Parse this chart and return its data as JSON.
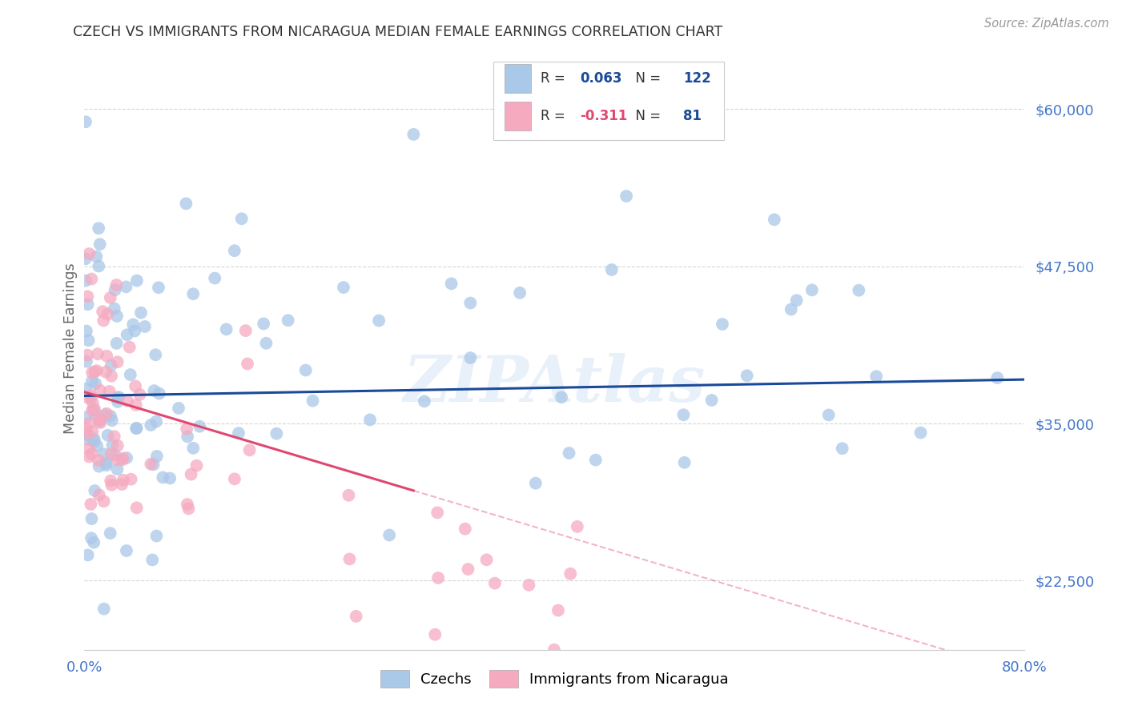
{
  "title": "CZECH VS IMMIGRANTS FROM NICARAGUA MEDIAN FEMALE EARNINGS CORRELATION CHART",
  "source": "Source: ZipAtlas.com",
  "ylabel": "Median Female Earnings",
  "xlim": [
    0.0,
    0.8
  ],
  "ylim": [
    17000,
    65000
  ],
  "yticks": [
    22500,
    35000,
    47500,
    60000
  ],
  "ytick_labels": [
    "$22,500",
    "$35,000",
    "$47,500",
    "$60,000"
  ],
  "xtick_labels": [
    "0.0%",
    "",
    "",
    "",
    "",
    "",
    "",
    "",
    "80.0%"
  ],
  "legend_labels": [
    "Czechs",
    "Immigrants from Nicaragua"
  ],
  "czech_color": "#aac8e8",
  "nicaragua_color": "#f5aac0",
  "czech_line_color": "#1a4a9a",
  "nicaragua_line_color": "#e04870",
  "watermark": "ZIPAtlas",
  "R_czech": 0.063,
  "N_czech": 122,
  "R_nicaragua": -0.311,
  "N_nicaragua": 81,
  "background_color": "#ffffff",
  "grid_color": "#cccccc",
  "title_color": "#333333",
  "axis_label_color": "#4477cc"
}
